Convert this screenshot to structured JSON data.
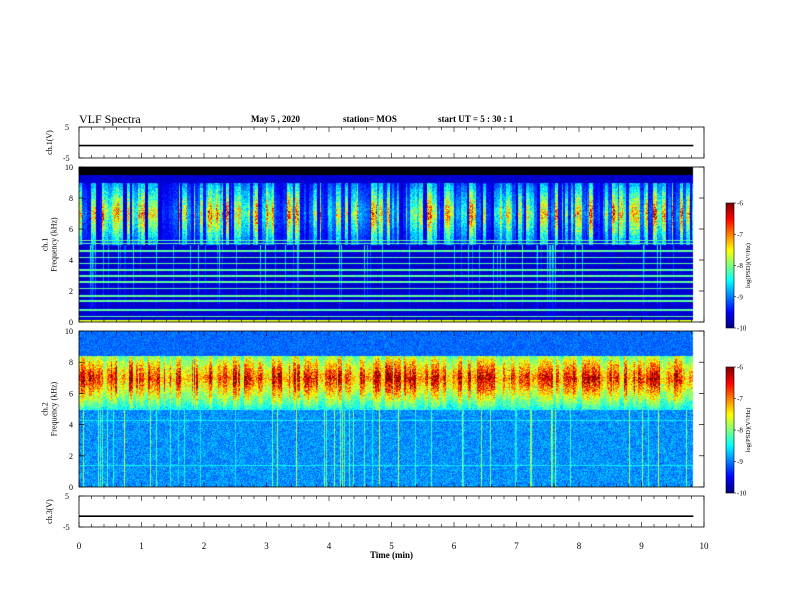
{
  "header": {
    "title": "VLF Spectra",
    "date": "May 5 , 2020",
    "station": "station= MOS",
    "start": "start  UT  =   5 : 30 : 1"
  },
  "chart_data": [
    {
      "type": "line",
      "panel": "ch1-waveform",
      "ylabel": "ch.1(V)",
      "ylim": [
        -5,
        5
      ],
      "yticks": [
        "5",
        "-5"
      ],
      "x": [
        0,
        10
      ],
      "values": [
        -1,
        -1
      ],
      "color": "#000000"
    },
    {
      "type": "heatmap",
      "panel": "ch1-spectrogram",
      "ylabel": "ch.1\nFrequency (kHz)",
      "xlim": [
        0,
        10
      ],
      "ylim": [
        0,
        10
      ],
      "yticks": [
        "0",
        "2",
        "4",
        "6",
        "8",
        "10"
      ],
      "data_end_min": 9.83,
      "colorbar": {
        "label": "log(PSD)(V²/Hz)",
        "ticks": [
          "-6",
          "-7",
          "-8",
          "-9",
          "-10"
        ],
        "range": [
          -10,
          -6
        ],
        "colormap": "jet"
      },
      "features": {
        "cutoff_khz": 9.5,
        "chorus_band_khz": [
          5.0,
          9.0
        ],
        "chorus_peak_khz": 7.0,
        "narrowband_lines_khz": [
          0.4,
          0.8,
          1.4,
          1.7,
          2.2,
          2.6,
          3.0,
          3.4,
          3.8,
          4.2,
          4.6,
          5.1,
          5.3
        ]
      }
    },
    {
      "type": "heatmap",
      "panel": "ch2-spectrogram",
      "ylabel": "ch.2\nFrequency (kHz)",
      "xlim": [
        0,
        10
      ],
      "ylim": [
        0,
        10
      ],
      "yticks": [
        "0",
        "2",
        "4",
        "6",
        "8",
        "10"
      ],
      "data_end_min": 9.83,
      "colorbar": {
        "label": "log(PSD)(V²/Hz)",
        "ticks": [
          "-6",
          "-7",
          "-8",
          "-9",
          "-10"
        ],
        "range": [
          -10,
          -6
        ],
        "colormap": "jet"
      },
      "features": {
        "cutoff_khz": 8.4,
        "chorus_band_khz": [
          5.0,
          8.4
        ],
        "chorus_peak_khz": 7.0,
        "narrowband_lines_khz": [
          5.0,
          4.3,
          1.4
        ]
      }
    },
    {
      "type": "line",
      "panel": "ch3-waveform",
      "ylabel": "ch.3(V)",
      "ylim": [
        -5,
        5
      ],
      "yticks": [
        "5",
        "-5"
      ],
      "x": [
        0,
        10
      ],
      "values": [
        -1.5,
        -1.5
      ],
      "color": "#000000"
    }
  ],
  "xaxis": {
    "label": "Time  (min)",
    "ticks": [
      "0",
      "1",
      "2",
      "3",
      "4",
      "5",
      "6",
      "7",
      "8",
      "9",
      "10"
    ],
    "range": [
      0,
      10
    ]
  }
}
